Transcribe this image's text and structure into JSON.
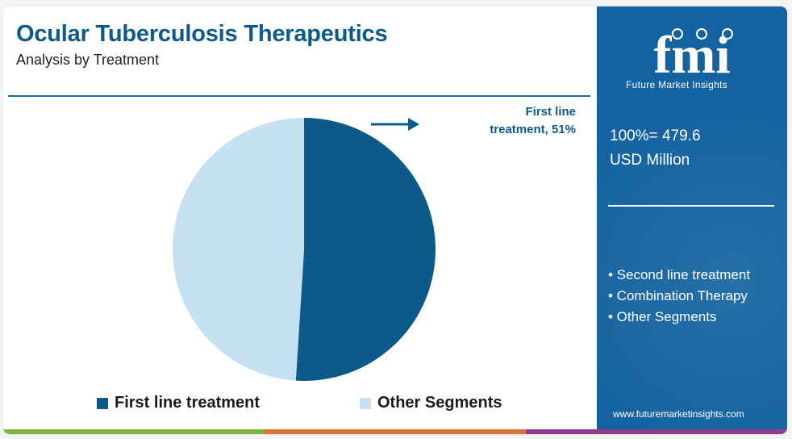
{
  "header": {
    "title": "Ocular Tuberculosis Therapeutics",
    "subtitle": "Analysis by Treatment"
  },
  "chart_data": {
    "type": "pie",
    "categories": [
      "First line treatment",
      "Other Segments"
    ],
    "values": [
      51,
      49
    ],
    "units": "%",
    "colors": [
      "#0b5a8a",
      "#c5e0f1"
    ],
    "legend_position": "bottom",
    "annotation": {
      "line1": "First line",
      "line2": "treatment, 51%"
    }
  },
  "legend": {
    "items": [
      {
        "label": "First line treatment",
        "color": "#0b5a8a"
      },
      {
        "label": "Other Segments",
        "color": "#c5e0f1"
      }
    ]
  },
  "side_panel": {
    "logo_text": "fmi",
    "logo_subtitle": "Future Market Insights",
    "total_line1": "100%= 479.6",
    "total_line2": "USD Million",
    "other_segments": [
      "• Second line treatment",
      "• Combination Therapy",
      "• Other Segments"
    ],
    "website": "www.futuremarketinsights.com",
    "background_color": "#1463a0"
  },
  "bottom_bar_colors": [
    "#7cb342",
    "#e0703a",
    "#8e3c8c"
  ]
}
